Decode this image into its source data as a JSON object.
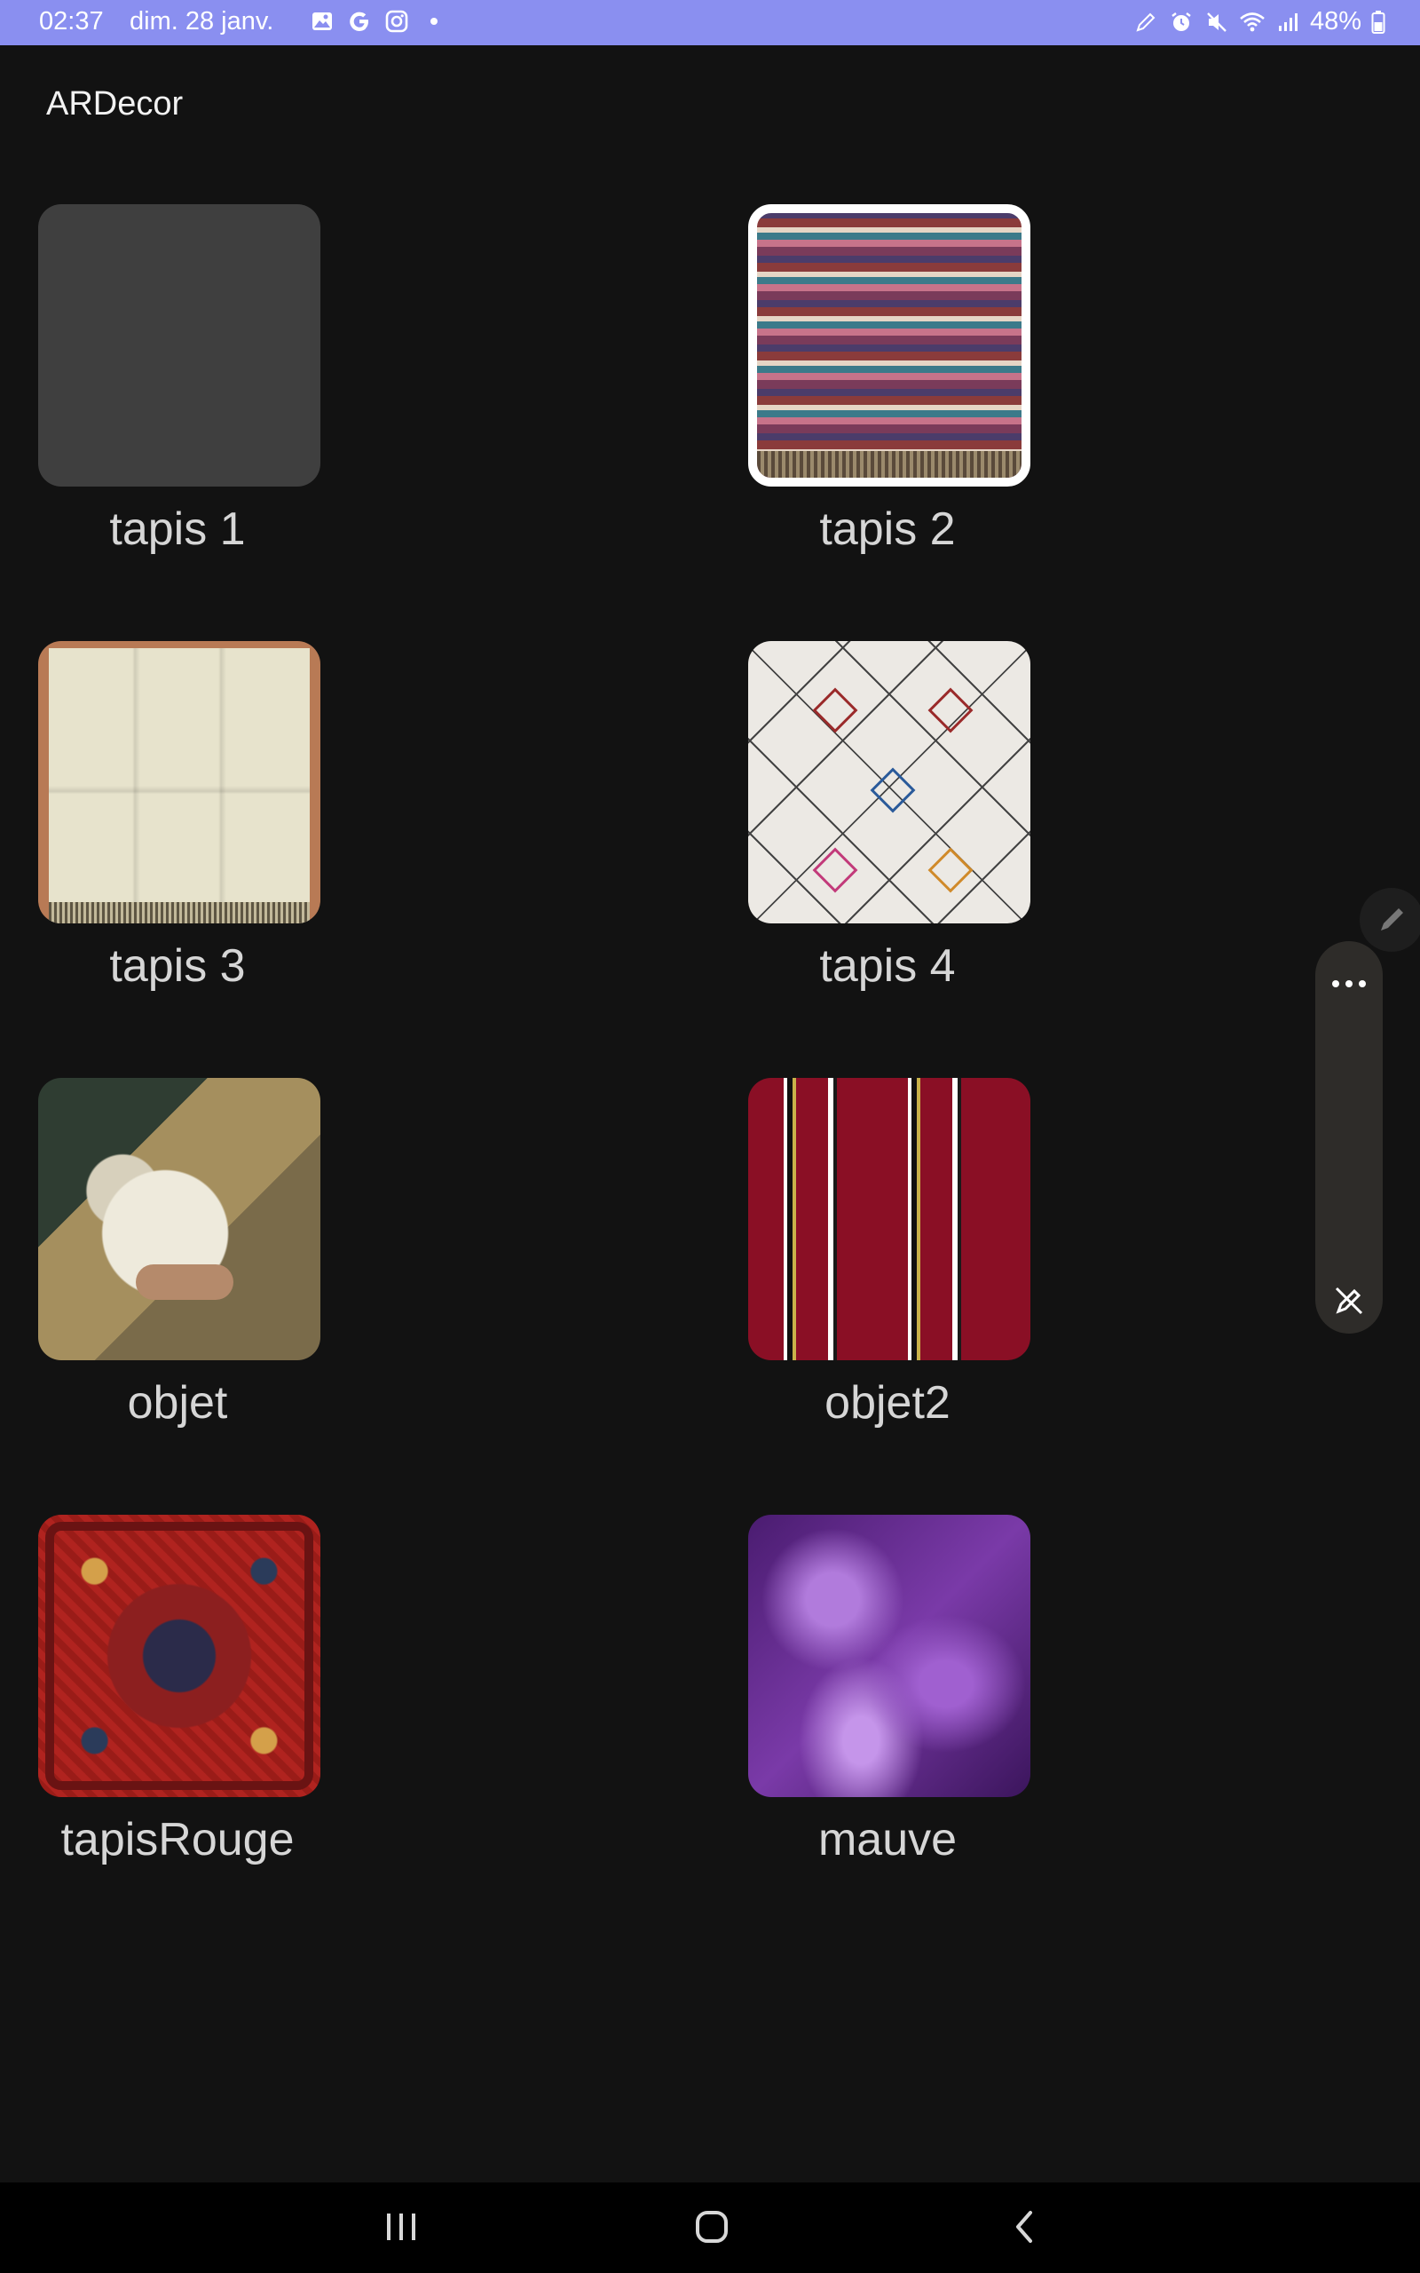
{
  "status_bar": {
    "time": "02:37",
    "date": "dim. 28 janv.",
    "battery": "48%"
  },
  "app": {
    "title": "ARDecor"
  },
  "items": [
    {
      "label": "tapis 1",
      "thumb": "blank"
    },
    {
      "label": "tapis 2",
      "thumb": "tapis2"
    },
    {
      "label": "tapis 3",
      "thumb": "tapis3"
    },
    {
      "label": "tapis 4",
      "thumb": "tapis4"
    },
    {
      "label": "objet",
      "thumb": "objet"
    },
    {
      "label": "objet2",
      "thumb": "objet2"
    },
    {
      "label": "tapisRouge",
      "thumb": "rouge"
    },
    {
      "label": "mauve",
      "thumb": "mauve"
    }
  ],
  "side_panel": {
    "more_icon": "more-horizontal-icon",
    "pen_icon": "pen-icon",
    "bottom_icon": "pen-off-icon"
  },
  "nav": {
    "recent_icon": "recent-apps-icon",
    "home_icon": "home-icon",
    "back_icon": "back-icon"
  },
  "colors": {
    "status_bar": "#8a8ff0",
    "background": "#121212",
    "label": "#d6d6d6"
  }
}
